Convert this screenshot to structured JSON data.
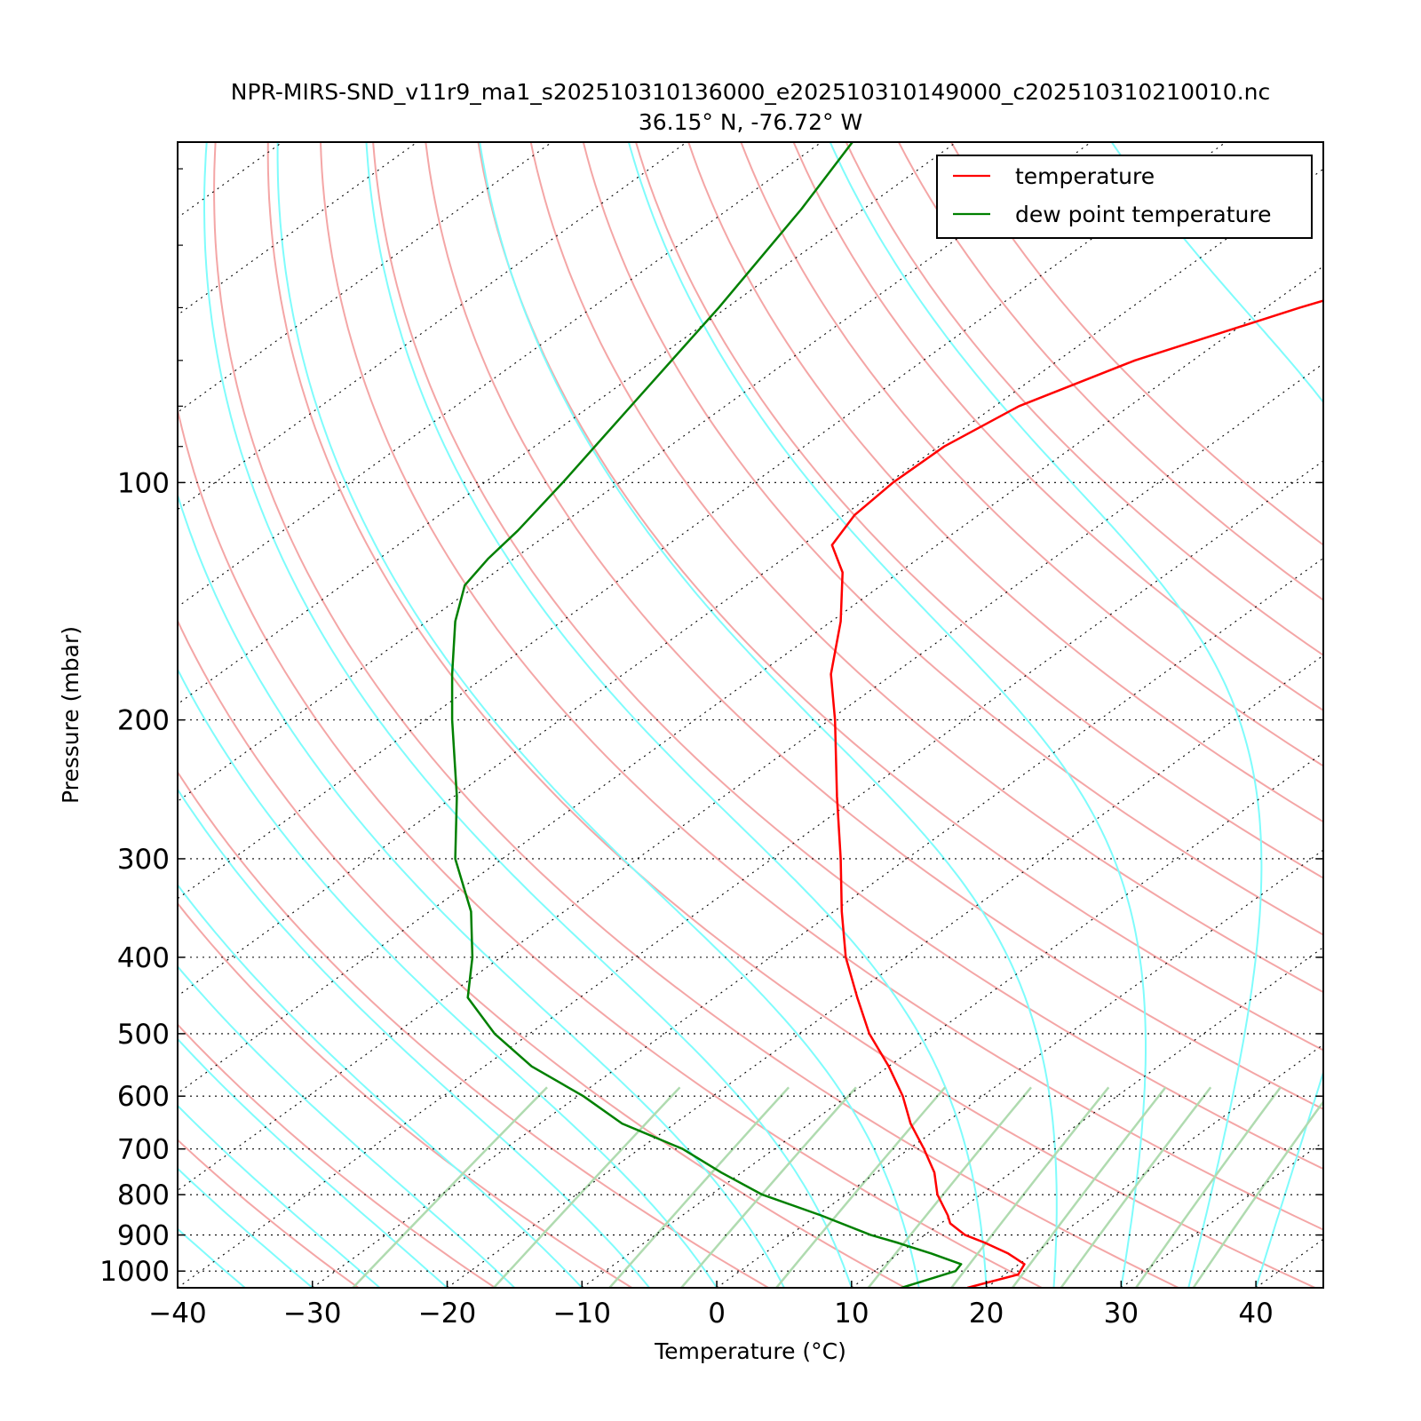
{
  "chart_data": {
    "type": "line",
    "title": "NPR-MIRS-SND_v11r9_ma1_s202510310136000_e202510310149000_c202510310210010.nc",
    "subtitle": "36.15° N, -76.72° W",
    "xlabel": "Temperature (°C)",
    "ylabel": "Pressure (mbar)",
    "xlim": [
      -40,
      45
    ],
    "ylim": [
      1050,
      37
    ],
    "y_scale": "log",
    "skew_t": true,
    "x_ticks": [
      -40,
      -30,
      -20,
      -10,
      0,
      10,
      20,
      30,
      40
    ],
    "x_tick_labels": [
      "−40",
      "−30",
      "−20",
      "−10",
      "0",
      "10",
      "20",
      "30",
      "40"
    ],
    "y_ticks": [
      100,
      200,
      300,
      400,
      500,
      600,
      700,
      800,
      900,
      1000
    ],
    "y_tick_labels": [
      "100",
      "200",
      "300",
      "400",
      "500",
      "600",
      "700",
      "800",
      "900",
      "1000"
    ],
    "grid": "dotted",
    "legend_position": "top-right",
    "series": [
      {
        "name": "temperature",
        "color": "#ff0000",
        "points": [
          [
            1050,
            18.6
          ],
          [
            1010,
            21.0
          ],
          [
            980,
            20.4
          ],
          [
            950,
            18.1
          ],
          [
            920,
            15.2
          ],
          [
            900,
            13.0
          ],
          [
            870,
            10.7
          ],
          [
            850,
            9.7
          ],
          [
            800,
            6.8
          ],
          [
            750,
            4.3
          ],
          [
            700,
            1.1
          ],
          [
            650,
            -2.5
          ],
          [
            600,
            -5.9
          ],
          [
            550,
            -10.0
          ],
          [
            500,
            -14.8
          ],
          [
            450,
            -19.4
          ],
          [
            400,
            -24.4
          ],
          [
            350,
            -29.4
          ],
          [
            300,
            -34.9
          ],
          [
            250,
            -41.6
          ],
          [
            200,
            -49.6
          ],
          [
            175,
            -54.6
          ],
          [
            150,
            -59.3
          ],
          [
            130,
            -64.2
          ],
          [
            120,
            -67.8
          ],
          [
            110,
            -69.2
          ],
          [
            100,
            -69.7
          ],
          [
            90,
            -69.6
          ],
          [
            80,
            -68.2
          ],
          [
            70,
            -64.3
          ],
          [
            60,
            -57.5
          ],
          [
            50,
            -48.2
          ],
          [
            42,
            -39.6
          ],
          [
            37,
            -34.9
          ]
        ]
      },
      {
        "name": "dew point temperature",
        "color": "#008000",
        "points": [
          [
            1050,
            13.7
          ],
          [
            1000,
            16.0
          ],
          [
            980,
            15.7
          ],
          [
            950,
            12.4
          ],
          [
            920,
            8.7
          ],
          [
            900,
            6.0
          ],
          [
            850,
            0.3
          ],
          [
            800,
            -6.2
          ],
          [
            750,
            -11.5
          ],
          [
            700,
            -16.8
          ],
          [
            650,
            -23.9
          ],
          [
            600,
            -29.6
          ],
          [
            550,
            -36.5
          ],
          [
            500,
            -42.6
          ],
          [
            450,
            -48.3
          ],
          [
            400,
            -52.1
          ],
          [
            350,
            -56.9
          ],
          [
            300,
            -63.5
          ],
          [
            250,
            -69.8
          ],
          [
            200,
            -78.0
          ],
          [
            175,
            -82.7
          ],
          [
            150,
            -87.9
          ],
          [
            135,
            -90.9
          ],
          [
            125,
            -91.9
          ],
          [
            115,
            -92.6
          ],
          [
            100,
            -94.2
          ],
          [
            80,
            -97.0
          ],
          [
            60,
            -100.6
          ],
          [
            45,
            -104.6
          ],
          [
            37,
            -107.7
          ]
        ]
      }
    ]
  }
}
